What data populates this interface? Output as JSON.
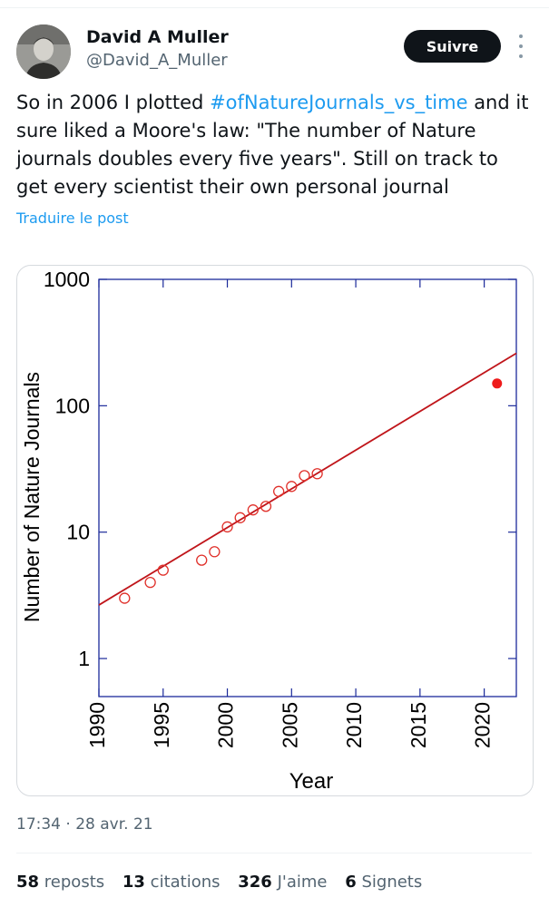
{
  "author": {
    "name": "David A Muller",
    "handle": "@David_A_Muller",
    "follow_label": "Suivre"
  },
  "tweet": {
    "text_before": "So in 2006 I plotted ",
    "hashtag": "#ofNatureJournals_vs_time",
    "text_after": " and it sure liked a Moore's law: \"The number of Nature journals doubles every five years\".  Still on track to get every scientist their own personal journal",
    "translate_label": "Traduire le post",
    "timestamp": "17:34 · 28 avr. 21"
  },
  "stats": [
    {
      "count": "58",
      "label": "reposts"
    },
    {
      "count": "13",
      "label": "citations"
    },
    {
      "count": "326",
      "label": "J'aime"
    },
    {
      "count": "6",
      "label": "Signets"
    }
  ],
  "colors": {
    "link": "#1d9bf0",
    "text": "#0f1419",
    "muted": "#536471",
    "fit_line": "#c0151a",
    "marker": "#e0302a",
    "axes": "#1b2a9a"
  },
  "chart_data": {
    "type": "scatter",
    "xlabel": "Year",
    "ylabel": "Number of Nature Journals",
    "xlim": [
      1990,
      2022.5
    ],
    "ylim": [
      0.5,
      1000
    ],
    "yscale": "log",
    "x_ticks": [
      1990,
      1995,
      2000,
      2005,
      2010,
      2015,
      2020
    ],
    "y_ticks": [
      1,
      10,
      100,
      1000
    ],
    "grid": false,
    "series": [
      {
        "marker": "open-circle",
        "points": [
          [
            1992,
            3
          ],
          [
            1994,
            4
          ],
          [
            1995,
            5
          ],
          [
            1998,
            6
          ],
          [
            1999,
            7
          ],
          [
            2000,
            11
          ],
          [
            2001,
            13
          ],
          [
            2002,
            15
          ],
          [
            2003,
            16
          ],
          [
            2004,
            21
          ],
          [
            2005,
            23
          ],
          [
            2006,
            28
          ],
          [
            2007,
            29
          ]
        ]
      },
      {
        "marker": "filled-circle",
        "points": [
          [
            2021,
            150
          ]
        ]
      }
    ],
    "fit_line": {
      "x": [
        1990,
        2022.5
      ],
      "y": [
        2.65,
        260
      ]
    }
  }
}
